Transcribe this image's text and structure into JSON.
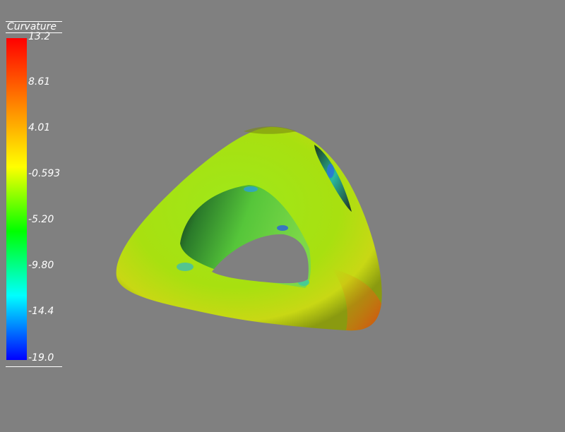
{
  "scalar_bar": {
    "title": "Curvature",
    "labels": [
      "13.2",
      "8.61",
      "4.01",
      "-0.593",
      "-5.20",
      "-9.80",
      "-14.4",
      "-19.0"
    ],
    "range": [
      -19.0,
      13.2
    ],
    "colormap": [
      "#ff0000",
      "#ff8000",
      "#ffff00",
      "#00ff00",
      "#00ffff",
      "#0000ff"
    ]
  }
}
